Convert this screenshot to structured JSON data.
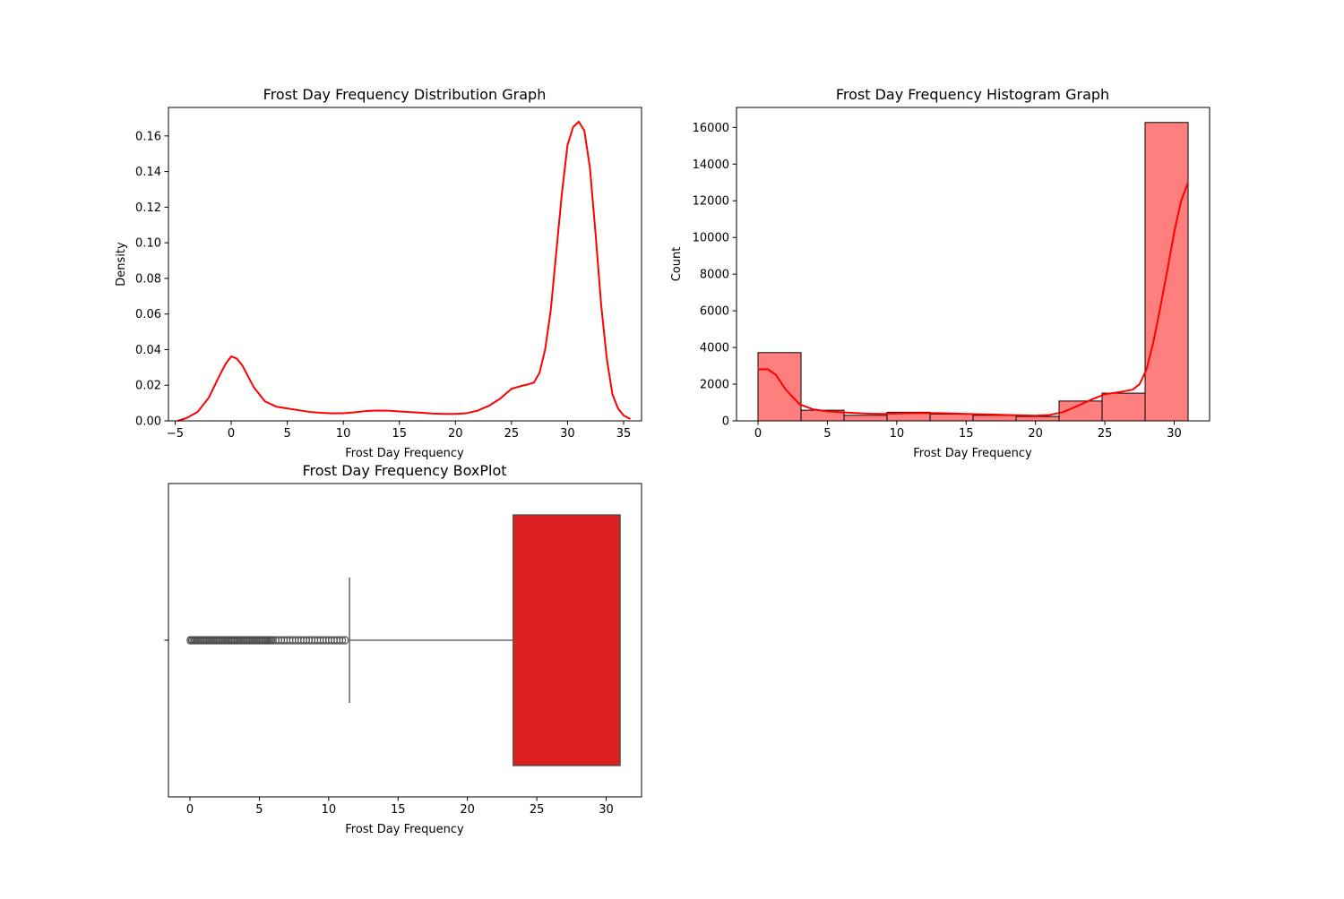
{
  "chart_data": [
    {
      "type": "line",
      "title": "Frost Day Frequency Distribution Graph",
      "xlabel": "Frost Day Frequency",
      "ylabel": "Density",
      "xlim": [
        -5.6,
        36.6
      ],
      "ylim": [
        0,
        0.176
      ],
      "x_ticks": [
        -5,
        0,
        5,
        10,
        15,
        20,
        25,
        30,
        35
      ],
      "y_ticks": [
        0.0,
        0.02,
        0.04,
        0.06,
        0.08,
        0.1,
        0.12,
        0.14,
        0.16
      ],
      "y_tick_labels": [
        "0.00",
        "0.02",
        "0.04",
        "0.06",
        "0.08",
        "0.10",
        "0.12",
        "0.14",
        "0.16"
      ],
      "grid": false,
      "color": "#ff0000",
      "series": [
        {
          "x": [
            -4.8,
            -4,
            -3,
            -2,
            -1,
            -0.5,
            0,
            0.5,
            1,
            1.5,
            2,
            3,
            4,
            5,
            6,
            7,
            8,
            9,
            10,
            11,
            12,
            13,
            14,
            15,
            16,
            17,
            18,
            19,
            20,
            21,
            22,
            23,
            24,
            25,
            26,
            26.5,
            27,
            27.5,
            28,
            28.5,
            29,
            29.5,
            30,
            30.5,
            31,
            31.5,
            32,
            32.5,
            33,
            33.5,
            34,
            34.5,
            35,
            35.6
          ],
          "values": [
            0.0,
            0.0015,
            0.005,
            0.013,
            0.026,
            0.032,
            0.0362,
            0.035,
            0.031,
            0.025,
            0.019,
            0.011,
            0.008,
            0.007,
            0.006,
            0.005,
            0.0045,
            0.0042,
            0.0043,
            0.0048,
            0.0055,
            0.0058,
            0.0057,
            0.0053,
            0.0049,
            0.0045,
            0.0041,
            0.0039,
            0.0039,
            0.0043,
            0.0058,
            0.0085,
            0.0125,
            0.018,
            0.0198,
            0.0205,
            0.0215,
            0.027,
            0.04,
            0.062,
            0.095,
            0.128,
            0.155,
            0.165,
            0.168,
            0.163,
            0.142,
            0.105,
            0.065,
            0.035,
            0.015,
            0.007,
            0.003,
            0.001
          ]
        }
      ]
    },
    {
      "type": "bar",
      "title": "Frost Day Frequency Histogram Graph",
      "xlabel": "Frost Day Frequency",
      "ylabel": "Count",
      "xlim": [
        -1.55,
        32.55
      ],
      "ylim": [
        0,
        17090
      ],
      "x_ticks": [
        0,
        5,
        10,
        15,
        20,
        25,
        30
      ],
      "y_ticks": [
        0,
        2000,
        4000,
        6000,
        8000,
        10000,
        12000,
        14000,
        16000
      ],
      "grid": false,
      "bar_color": "#ff7f7f",
      "edge_color": "#000000",
      "bin_edges": [
        0,
        3.1,
        6.2,
        9.3,
        12.4,
        15.5,
        18.6,
        21.7,
        24.8,
        27.9,
        31
      ],
      "values": [
        3720,
        580,
        300,
        470,
        370,
        300,
        240,
        1080,
        1510,
        16270
      ],
      "kde": {
        "color": "#ff0000",
        "x": [
          0,
          0.7,
          1.3,
          2,
          3,
          4,
          5,
          6,
          7,
          8,
          9,
          10,
          11,
          12,
          13,
          14,
          15,
          16,
          17,
          18,
          19,
          20,
          21,
          22,
          23,
          24,
          25,
          26,
          27,
          27.5,
          28,
          28.5,
          29,
          29.5,
          30,
          30.5,
          31
        ],
        "values": [
          2800,
          2820,
          2500,
          1700,
          900,
          620,
          520,
          470,
          430,
          390,
          380,
          400,
          420,
          430,
          420,
          400,
          380,
          360,
          340,
          320,
          300,
          280,
          320,
          480,
          800,
          1150,
          1450,
          1560,
          1700,
          2000,
          2800,
          4300,
          6200,
          8200,
          10300,
          12000,
          13000
        ]
      }
    },
    {
      "type": "boxplot",
      "title": "Frost Day Frequency BoxPlot",
      "xlabel": "Frost Day Frequency",
      "ylabel": "",
      "xlim": [
        -1.55,
        32.55
      ],
      "x_ticks": [
        0,
        5,
        10,
        15,
        20,
        25,
        30
      ],
      "grid": false,
      "box_color": "#de2020",
      "line_color": "#4d4d4d",
      "q1": 23.3,
      "median": 31,
      "q3": 31,
      "whisker_low": 11.5,
      "whisker_high": 31,
      "outliers": [
        0,
        0.1,
        0.2,
        0.3,
        0.4,
        0.5,
        0.6,
        0.7,
        0.8,
        0.9,
        1.0,
        1.1,
        1.2,
        1.3,
        1.4,
        1.5,
        1.6,
        1.7,
        1.8,
        1.9,
        2.0,
        2.1,
        2.2,
        2.3,
        2.4,
        2.5,
        2.6,
        2.7,
        2.8,
        2.9,
        3.0,
        3.1,
        3.2,
        3.3,
        3.4,
        3.5,
        3.6,
        3.7,
        3.8,
        3.9,
        4.0,
        4.1,
        4.2,
        4.3,
        4.4,
        4.5,
        4.6,
        4.7,
        4.8,
        4.9,
        5.0,
        5.1,
        5.2,
        5.3,
        5.4,
        5.5,
        5.6,
        5.7,
        5.8,
        5.9,
        6.0,
        6.2,
        6.4,
        6.6,
        6.8,
        7.0,
        7.2,
        7.4,
        7.6,
        7.8,
        8.0,
        8.2,
        8.4,
        8.6,
        8.8,
        9.0,
        9.2,
        9.4,
        9.6,
        9.8,
        10.0,
        10.2,
        10.4,
        10.6,
        10.8,
        11.0,
        11.2
      ]
    }
  ]
}
